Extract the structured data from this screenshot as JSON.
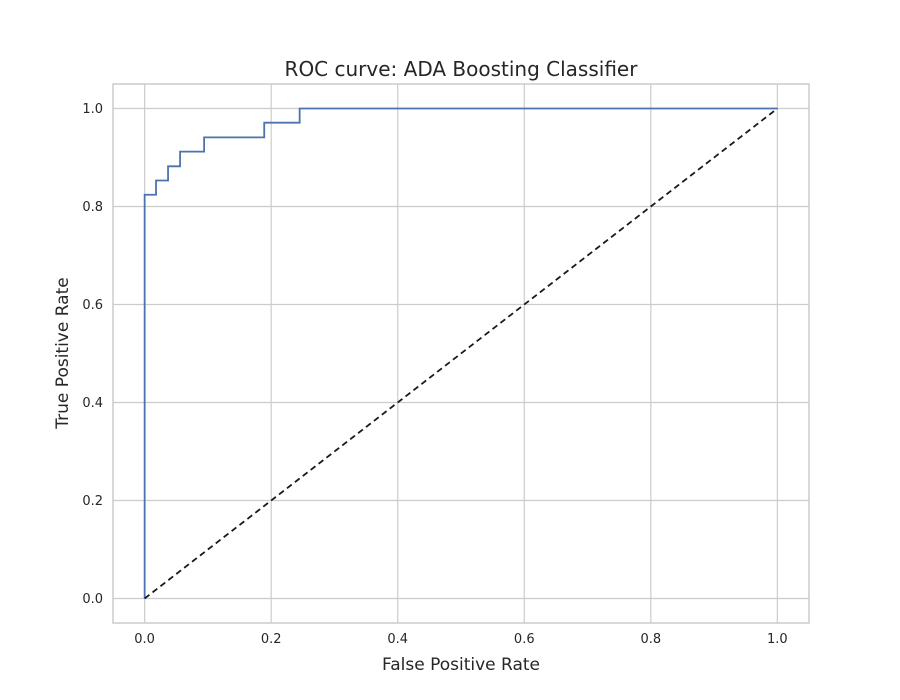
{
  "chart_data": {
    "type": "line",
    "title": "ROC curve: ADA Boosting Classifier",
    "xlabel": "False Positive Rate",
    "ylabel": "True Positive Rate",
    "xlim": [
      -0.05,
      1.05
    ],
    "ylim": [
      -0.05,
      1.05
    ],
    "grid": true,
    "x_ticks": [
      0.0,
      0.2,
      0.4,
      0.6,
      0.8,
      1.0
    ],
    "y_ticks": [
      0.0,
      0.2,
      0.4,
      0.6,
      0.8,
      1.0
    ],
    "x_tick_labels": [
      "0.0",
      "0.2",
      "0.4",
      "0.6",
      "0.8",
      "1.0"
    ],
    "y_tick_labels": [
      "0.0",
      "0.2",
      "0.4",
      "0.6",
      "0.8",
      "1.0"
    ],
    "series": [
      {
        "style": "step",
        "color": "#4c72b0",
        "x": [
          0.0,
          0.0,
          0.0,
          0.018,
          0.018,
          0.037,
          0.037,
          0.056,
          0.056,
          0.094,
          0.094,
          0.189,
          0.189,
          0.245,
          0.245,
          1.0
        ],
        "y": [
          0.0,
          0.0,
          0.824,
          0.824,
          0.853,
          0.853,
          0.882,
          0.882,
          0.912,
          0.912,
          0.941,
          0.941,
          0.971,
          0.971,
          1.0,
          1.0
        ]
      },
      {
        "style": "dashed",
        "color": "#1a1a1a",
        "x": [
          0.0,
          1.0
        ],
        "y": [
          0.0,
          1.0
        ]
      }
    ]
  }
}
